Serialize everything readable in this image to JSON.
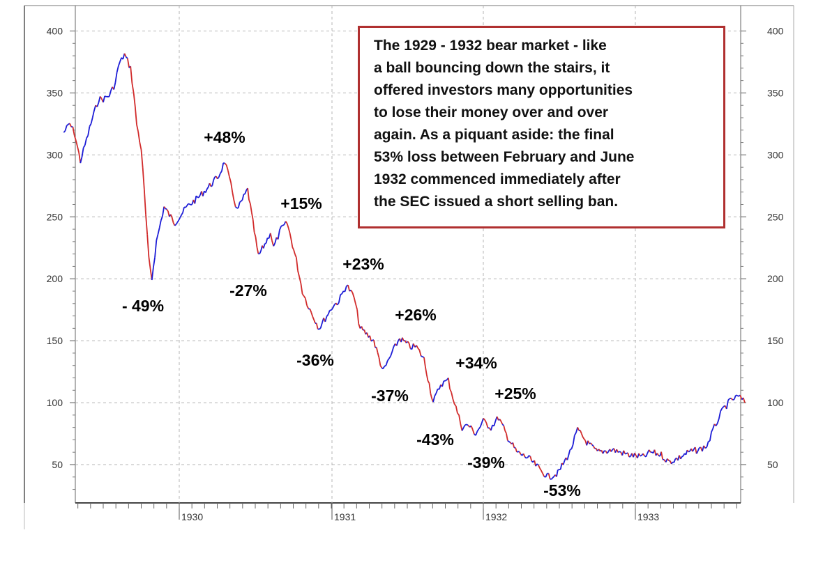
{
  "chart_data": {
    "type": "line",
    "x_ticks": [
      "1930",
      "1931",
      "1932",
      "1933"
    ],
    "y_ticks": [
      400,
      350,
      300,
      250,
      200,
      150,
      100,
      50
    ],
    "ylim": [
      20,
      410
    ],
    "xlim": [
      1929.24,
      1933.72
    ],
    "grid": true,
    "series_colors": {
      "up": "#1b1bd6",
      "down": "#d12a2a"
    },
    "series": [
      {
        "x": [
          1929.24,
          1929.28,
          1929.31,
          1929.35,
          1929.39,
          1929.43,
          1929.47,
          1929.5,
          1929.54,
          1929.58,
          1929.6,
          1929.64,
          1929.68,
          1929.7,
          1929.72,
          1929.75,
          1929.77,
          1929.8,
          1929.82,
          1929.85,
          1929.9,
          1929.97,
          1930.05,
          1930.12,
          1930.2,
          1930.26,
          1930.3,
          1930.35,
          1930.38,
          1930.45,
          1930.52,
          1930.58,
          1930.6,
          1930.62,
          1930.67,
          1930.71,
          1930.77,
          1930.81,
          1930.86,
          1930.92,
          1930.97,
          1931.01,
          1931.05,
          1931.1,
          1931.15,
          1931.19,
          1931.28,
          1931.34,
          1931.38,
          1931.42,
          1931.45,
          1931.52,
          1931.56,
          1931.61,
          1931.67,
          1931.72,
          1931.77,
          1931.81,
          1931.86,
          1931.9,
          1931.95,
          1932.0,
          1932.05,
          1932.1,
          1932.16,
          1932.22,
          1932.3,
          1932.38,
          1932.43,
          1932.49,
          1932.57,
          1932.62,
          1932.68,
          1932.75,
          1932.85,
          1932.95,
          1933.05,
          1933.1,
          1933.17,
          1933.22,
          1933.28,
          1933.35,
          1933.42,
          1933.47,
          1933.52,
          1933.55,
          1933.58,
          1933.63,
          1933.68,
          1933.72
        ],
        "y": [
          318,
          325,
          318,
          295,
          312,
          330,
          345,
          345,
          348,
          358,
          372,
          381,
          370,
          350,
          325,
          305,
          270,
          215,
          200,
          230,
          258,
          245,
          258,
          265,
          275,
          283,
          295,
          270,
          255,
          272,
          218,
          232,
          238,
          225,
          240,
          245,
          215,
          190,
          175,
          160,
          170,
          178,
          182,
          195,
          185,
          160,
          150,
          125,
          135,
          145,
          152,
          145,
          145,
          135,
          100,
          115,
          118,
          100,
          80,
          82,
          75,
          85,
          80,
          88,
          72,
          60,
          55,
          45,
          40,
          43,
          60,
          78,
          68,
          60,
          62,
          58,
          56,
          60,
          58,
          52,
          55,
          60,
          62,
          65,
          80,
          88,
          95,
          102,
          105,
          100
        ]
      }
    ],
    "annotations": [
      "+48%",
      "+15%",
      "+23%",
      "+26%",
      "+34%",
      "+25%",
      "- 49%",
      "-27%",
      "-36%",
      "-37%",
      "-43%",
      "-39%",
      "-53%"
    ],
    "note": "The 1929 - 1932 bear market - like a ball bouncing down the stairs, it offered investors many opportunities to lose their money over and over again. As a piquant aside: the final 53% loss between February and June 1932 commenced immediately after the SEC issued a short selling ban.",
    "note_lines": [
      "The 1929 - 1932 bear market - like",
      "a ball bouncing down the stairs, it",
      "offered investors many opportunities",
      "to lose their money over and over",
      "again. As a piquant aside: the final",
      "53% loss between February and June",
      "1932 commenced immediately after",
      "the SEC issued a short selling ban."
    ]
  }
}
